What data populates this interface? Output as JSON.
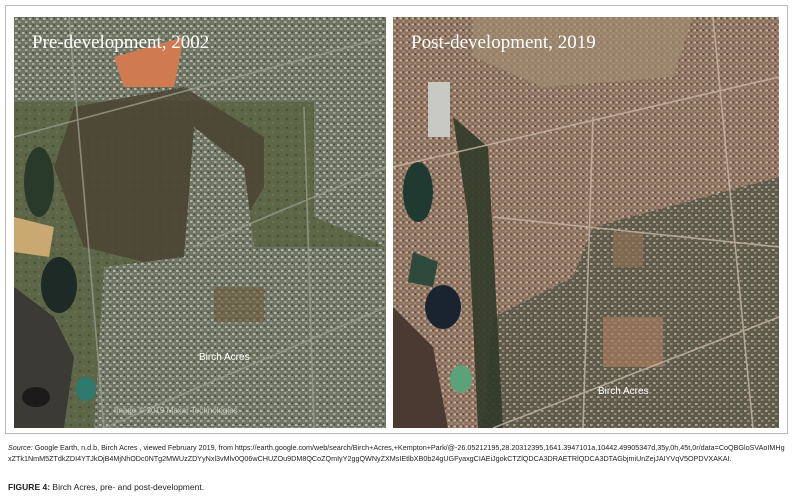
{
  "figure": {
    "panels": [
      {
        "title": "Pre-development, 2002",
        "labels": [
          "Birch Acres",
          "Image © 2019 Maxar Technologies"
        ]
      },
      {
        "title": "Post-development, 2019",
        "labels": [
          "Birch Acres"
        ]
      }
    ],
    "source": {
      "label": "Source:",
      "text": "Google Earth, n.d.b, Birch Acres , viewed February 2019, from https://earth.google.com/web/search/Birch+Acres,+Kempton+Park/@-26.05212195,28.20312395,1641.3947101a,10442.49905347d,35y,0h,45t,0r/data=CoQBGloSVAoIMHgxZTk1NmM5ZTdkZDI4YTJkOjB4MjNhODc0NTg2MWUzZDYyNxl3vMlv0Q06wCHUZOu9DM8QCoZQmIyY2ggQWNyZXMsIEtlbXB0b24gUGFyaxgCIAEiJgokCTZlQDCA3DRAETRlQDCA3DTAGbjmiUnZejJAIYVqV5OPDVXAKAI."
    },
    "caption": {
      "label": "FIGURE 4:",
      "text": "Birch Acres, pre- and post-development."
    }
  }
}
